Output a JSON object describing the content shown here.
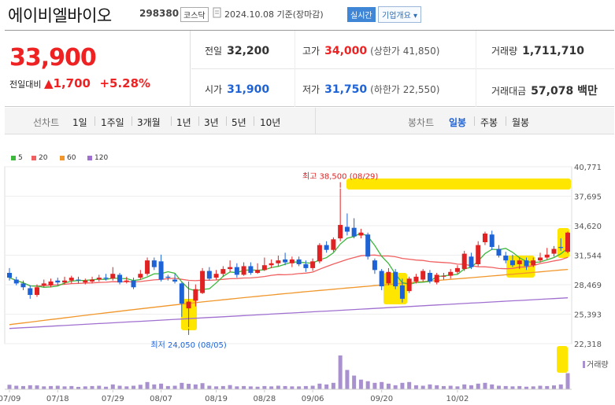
{
  "header": {
    "name": "에이비엘바이오",
    "code": "298380",
    "market": "코스닥",
    "date_label": "2024.10.08 기준(장마감)",
    "realtime_label": "실시간",
    "company_label": "기업개요 ▾"
  },
  "quote": {
    "price": "33,900",
    "change_label": "전일대비",
    "change": "▲1,700",
    "change_pct": "+5.28%",
    "prev_close_label": "전일",
    "prev_close": "32,200",
    "open_label": "시가",
    "open": "31,900",
    "high_label": "고가",
    "high": "34,000",
    "upper_limit": "(상한가 41,850)",
    "low_label": "저가",
    "low": "31,750",
    "lower_limit": "(하한가 22,550)",
    "volume_label": "거래량",
    "volume": "1,711,710",
    "amount_label": "거래대금",
    "amount": "57,078 백만"
  },
  "tabs": {
    "line_label": "선차트",
    "line_items": [
      "1일",
      "1주일",
      "3개월",
      "1년",
      "3년",
      "5년",
      "10년"
    ],
    "candle_label": "봉차트",
    "candle_items": [
      "일봉",
      "주봉",
      "월봉"
    ],
    "active_candle": "일봉"
  },
  "colors": {
    "up": "#e22222",
    "down": "#1e63d6",
    "ma5": "#3db83d",
    "ma20": "#f06060",
    "ma60": "#f0962a",
    "ma120": "#a070d0",
    "highlight": "#ffe600"
  },
  "chart_data": {
    "type": "candlestick",
    "legend": [
      {
        "name": "5",
        "color": "#3db83d"
      },
      {
        "name": "20",
        "color": "#f06060"
      },
      {
        "name": "60",
        "color": "#f0962a"
      },
      {
        "name": "120",
        "color": "#a070d0"
      }
    ],
    "y_ticks": [
      "40,771",
      "37,695",
      "34,620",
      "31,544",
      "28,469",
      "25,393",
      "22,318"
    ],
    "ylim": [
      22318,
      40771
    ],
    "x_ticks": [
      "07/09",
      "07/18",
      "07/29",
      "08/07",
      "08/19",
      "08/28",
      "09/06",
      "09/20",
      "10/02"
    ],
    "annotations": {
      "high": "최고 38,500 (08/29)",
      "low": "최저 24,050 (08/05)"
    },
    "volume_label": "거래량",
    "candles": [
      {
        "o": 29700,
        "c": 29200,
        "h": 30200,
        "l": 28900
      },
      {
        "o": 29000,
        "c": 28600,
        "h": 29300,
        "l": 28400
      },
      {
        "o": 28600,
        "c": 28200,
        "h": 28900,
        "l": 27900
      },
      {
        "o": 28100,
        "c": 27400,
        "h": 28400,
        "l": 27000
      },
      {
        "o": 27400,
        "c": 28200,
        "h": 28500,
        "l": 27200
      },
      {
        "o": 28400,
        "c": 28600,
        "h": 29000,
        "l": 28200
      },
      {
        "o": 28400,
        "c": 28800,
        "h": 29100,
        "l": 28200
      },
      {
        "o": 28900,
        "c": 28700,
        "h": 29200,
        "l": 28400
      },
      {
        "o": 28700,
        "c": 28900,
        "h": 29300,
        "l": 28500
      },
      {
        "o": 28900,
        "c": 29200,
        "h": 29400,
        "l": 28600
      },
      {
        "o": 29000,
        "c": 28900,
        "h": 29300,
        "l": 28600
      },
      {
        "o": 28700,
        "c": 28900,
        "h": 29100,
        "l": 28500
      },
      {
        "o": 28800,
        "c": 29000,
        "h": 29300,
        "l": 28600
      },
      {
        "o": 29000,
        "c": 29200,
        "h": 29500,
        "l": 28800
      },
      {
        "o": 29200,
        "c": 29100,
        "h": 29600,
        "l": 28900
      },
      {
        "o": 29100,
        "c": 29600,
        "h": 30300,
        "l": 28900
      },
      {
        "o": 29500,
        "c": 28700,
        "h": 29700,
        "l": 28500
      },
      {
        "o": 28800,
        "c": 28900,
        "h": 29300,
        "l": 28600
      },
      {
        "o": 28900,
        "c": 28200,
        "h": 29200,
        "l": 28000
      },
      {
        "o": 29200,
        "c": 29600,
        "h": 30000,
        "l": 29000
      },
      {
        "o": 29600,
        "c": 31000,
        "h": 31300,
        "l": 29400
      },
      {
        "o": 31000,
        "c": 30300,
        "h": 31300,
        "l": 30000
      },
      {
        "o": 30900,
        "c": 29000,
        "h": 31600,
        "l": 28800
      },
      {
        "o": 29300,
        "c": 29200,
        "h": 29500,
        "l": 28900
      },
      {
        "o": 29000,
        "c": 28800,
        "h": 29600,
        "l": 28600
      },
      {
        "o": 28600,
        "c": 26500,
        "h": 28700,
        "l": 25100
      },
      {
        "o": 26000,
        "c": 26700,
        "h": 28800,
        "l": 24050
      },
      {
        "o": 26800,
        "c": 28000,
        "h": 28500,
        "l": 26200
      },
      {
        "o": 27600,
        "c": 29900,
        "h": 30200,
        "l": 27500
      },
      {
        "o": 29900,
        "c": 29100,
        "h": 30300,
        "l": 28900
      },
      {
        "o": 29200,
        "c": 29600,
        "h": 30000,
        "l": 29000
      },
      {
        "o": 29600,
        "c": 30100,
        "h": 30400,
        "l": 29300
      },
      {
        "o": 30100,
        "c": 30300,
        "h": 31000,
        "l": 29800
      },
      {
        "o": 30300,
        "c": 29500,
        "h": 30700,
        "l": 29200
      },
      {
        "o": 29500,
        "c": 30400,
        "h": 30800,
        "l": 29400
      },
      {
        "o": 30400,
        "c": 29700,
        "h": 30800,
        "l": 29500
      },
      {
        "o": 29700,
        "c": 30000,
        "h": 30700,
        "l": 29600
      },
      {
        "o": 30000,
        "c": 30500,
        "h": 31300,
        "l": 29900
      },
      {
        "o": 30500,
        "c": 30700,
        "h": 31100,
        "l": 30200
      },
      {
        "o": 30700,
        "c": 31000,
        "h": 31500,
        "l": 30400
      },
      {
        "o": 31100,
        "c": 30800,
        "h": 31800,
        "l": 30500
      },
      {
        "o": 30700,
        "c": 31100,
        "h": 31400,
        "l": 30300
      },
      {
        "o": 31100,
        "c": 30600,
        "h": 31400,
        "l": 30400
      },
      {
        "o": 30600,
        "c": 30200,
        "h": 31000,
        "l": 29800
      },
      {
        "o": 30200,
        "c": 30900,
        "h": 31200,
        "l": 29900
      },
      {
        "o": 30900,
        "c": 32600,
        "h": 32800,
        "l": 30700
      },
      {
        "o": 32600,
        "c": 32100,
        "h": 33000,
        "l": 31800
      },
      {
        "o": 32100,
        "c": 33200,
        "h": 33400,
        "l": 31900
      },
      {
        "o": 33300,
        "c": 34700,
        "h": 38500,
        "l": 33000
      },
      {
        "o": 34500,
        "c": 34000,
        "h": 35900,
        "l": 33600
      },
      {
        "o": 34400,
        "c": 33500,
        "h": 35400,
        "l": 33300
      },
      {
        "o": 33600,
        "c": 33900,
        "h": 34300,
        "l": 33300
      },
      {
        "o": 33700,
        "c": 31400,
        "h": 33900,
        "l": 31100
      },
      {
        "o": 31000,
        "c": 30000,
        "h": 31200,
        "l": 29600
      },
      {
        "o": 29900,
        "c": 28300,
        "h": 30100,
        "l": 27900
      },
      {
        "o": 28600,
        "c": 29800,
        "h": 30200,
        "l": 28400
      },
      {
        "o": 29800,
        "c": 28300,
        "h": 30100,
        "l": 28000
      },
      {
        "o": 28400,
        "c": 27000,
        "h": 29100,
        "l": 26600
      },
      {
        "o": 27800,
        "c": 29100,
        "h": 29300,
        "l": 27600
      },
      {
        "o": 28800,
        "c": 29300,
        "h": 29600,
        "l": 28600
      },
      {
        "o": 29000,
        "c": 29900,
        "h": 30100,
        "l": 28800
      },
      {
        "o": 29700,
        "c": 28800,
        "h": 30000,
        "l": 28600
      },
      {
        "o": 28700,
        "c": 29500,
        "h": 29700,
        "l": 28500
      },
      {
        "o": 29300,
        "c": 29400,
        "h": 29700,
        "l": 29000
      },
      {
        "o": 29400,
        "c": 29800,
        "h": 30100,
        "l": 29100
      },
      {
        "o": 29800,
        "c": 30200,
        "h": 30500,
        "l": 29600
      },
      {
        "o": 30100,
        "c": 31700,
        "h": 32000,
        "l": 29900
      },
      {
        "o": 31400,
        "c": 30300,
        "h": 31800,
        "l": 30100
      },
      {
        "o": 30600,
        "c": 32600,
        "h": 33000,
        "l": 30400
      },
      {
        "o": 32900,
        "c": 33800,
        "h": 34000,
        "l": 32600
      },
      {
        "o": 33700,
        "c": 32400,
        "h": 34100,
        "l": 32100
      },
      {
        "o": 32200,
        "c": 31500,
        "h": 32600,
        "l": 31300
      },
      {
        "o": 31500,
        "c": 31000,
        "h": 31900,
        "l": 30700
      },
      {
        "o": 31000,
        "c": 30500,
        "h": 31600,
        "l": 30300
      },
      {
        "o": 30600,
        "c": 31000,
        "h": 31300,
        "l": 30100
      },
      {
        "o": 31000,
        "c": 30400,
        "h": 31300,
        "l": 30000
      },
      {
        "o": 30500,
        "c": 31000,
        "h": 31300,
        "l": 30300
      },
      {
        "o": 31000,
        "c": 31300,
        "h": 31800,
        "l": 30800
      },
      {
        "o": 31300,
        "c": 31600,
        "h": 32300,
        "l": 31100
      },
      {
        "o": 31700,
        "c": 32200,
        "h": 32500,
        "l": 31400
      },
      {
        "o": 32400,
        "c": 32300,
        "h": 33300,
        "l": 32000
      },
      {
        "o": 31900,
        "c": 33900,
        "h": 34000,
        "l": 31750
      }
    ],
    "volumes": [
      28,
      22,
      20,
      25,
      24,
      18,
      20,
      22,
      18,
      20,
      15,
      18,
      20,
      22,
      16,
      30,
      22,
      18,
      22,
      28,
      45,
      30,
      35,
      20,
      22,
      40,
      34,
      30,
      38,
      22,
      18,
      20,
      26,
      18,
      20,
      18,
      16,
      20,
      18,
      22,
      20,
      18,
      18,
      20,
      22,
      35,
      30,
      40,
      210,
      120,
      85,
      60,
      50,
      40,
      45,
      35,
      25,
      40,
      45,
      25,
      22,
      30,
      25,
      20,
      22,
      18,
      30,
      25,
      35,
      40,
      30,
      22,
      20,
      18,
      20,
      16,
      18,
      22,
      20,
      24,
      30,
      100
    ]
  }
}
